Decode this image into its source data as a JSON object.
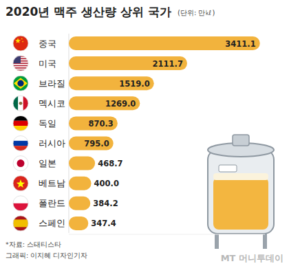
{
  "chart_data": {
    "type": "bar",
    "orientation": "horizontal",
    "title": "2020년 맥주 생산량 상위 국가",
    "subtitle": "(단위: 만㎘)",
    "categories": [
      "중국",
      "미국",
      "브라질",
      "멕시코",
      "독일",
      "러시아",
      "일본",
      "베트남",
      "폴란드",
      "스페인"
    ],
    "values": [
      3411.1,
      2111.7,
      1519.0,
      1269.0,
      870.3,
      795.0,
      468.7,
      400.0,
      384.2,
      347.4
    ],
    "value_labels": [
      "3411.1",
      "2111.7",
      "1519.0",
      "1269.0",
      "870.3",
      "795.0",
      "468.7",
      "400.0",
      "384.2",
      "347.4"
    ],
    "color": "#f2b33d",
    "xlim": [
      0,
      3500
    ],
    "data_labels": true,
    "tick_labels": false,
    "grid": false,
    "annotations": [
      "*자료: 스태티스타",
      "그래픽: 이지혜 디자인기자",
      "MT 머니투데이"
    ]
  }
}
